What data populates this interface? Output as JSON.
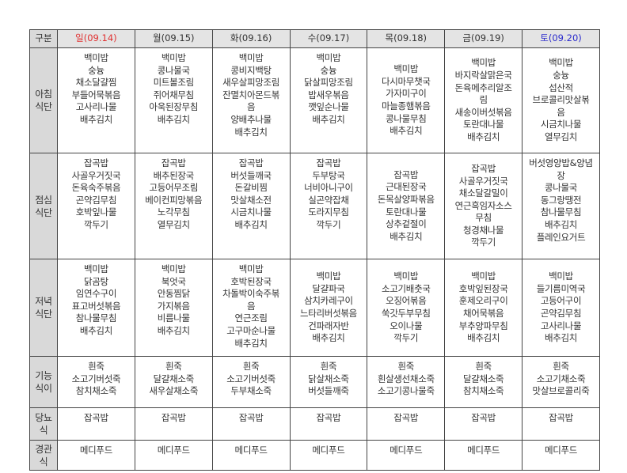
{
  "header": {
    "label": "구분",
    "days": [
      "일(09.14)",
      "월(09.15)",
      "화(09.16)",
      "수(09.17)",
      "목(09.18)",
      "금(09.19)",
      "토(09.20)"
    ],
    "day_colors": [
      "#e03030",
      "#333333",
      "#333333",
      "#333333",
      "#333333",
      "#333333",
      "#2b2bcc"
    ]
  },
  "rows": [
    {
      "label": [
        "아침",
        "식단"
      ],
      "cells": [
        [
          "백미밥",
          "숭늉",
          "채소달걀찜",
          "부들어묵볶음",
          "고사리나물",
          "배추김치"
        ],
        [
          "백미밥",
          "콩나물국",
          "미트볼조림",
          "쥐어채무침",
          "아욱된장무침",
          "배추김치"
        ],
        [
          "백미밥",
          "콩비지백탕",
          "새우살피망조림",
          "잔멸치아몬드볶",
          "음",
          "양배추나물",
          "배추김치"
        ],
        [
          "백미밥",
          "숭늉",
          "닭살피망조림",
          "밥새우볶음",
          "깻잎순나물",
          "배추김치"
        ],
        [
          "백미밥",
          "다시마무챗국",
          "가자미구이",
          "마늘종햄볶음",
          "콩나물무침",
          "배추김치"
        ],
        [
          "백미밥",
          "바지락살맑은국",
          "돈육메추리알조",
          "림",
          "새송이버섯볶음",
          "토란대나물",
          "배추김치"
        ],
        [
          "백미밥",
          "숭늉",
          "섭산적",
          "브로콜리맛살볶",
          "음",
          "시금치나물",
          "열무김치"
        ]
      ]
    },
    {
      "label": [
        "점심",
        "식단"
      ],
      "cells": [
        [
          "잡곡밥",
          "사골우거짓국",
          "돈육숙주볶음",
          "곤약김무침",
          "호박잎나물",
          "깍두기"
        ],
        [
          "잡곡밥",
          "배추된장국",
          "고등어무조림",
          "베이컨피망볶음",
          "노각무침",
          "열무김치"
        ],
        [
          "잡곡밥",
          "버섯들깨국",
          "돈갈비찜",
          "맛살채소전",
          "시금치나물",
          "배추김치"
        ],
        [
          "잡곡밥",
          "두부탕국",
          "너비아니구이",
          "실곤약잡채",
          "도라지무침",
          "깍두기"
        ],
        [
          "잡곡밥",
          "근대된장국",
          "돈목살양파볶음",
          "토란대나물",
          "상추겉절이",
          "배추김치"
        ],
        [
          "잡곡밥",
          "사골우거짓국",
          "채소달갈밀이",
          "연근흑임자소스",
          "무침",
          "청경채나물",
          "깍두기"
        ],
        [
          "버섯영양밥&양념",
          "장",
          "콩나물국",
          "동그랑땡전",
          "참나물무침",
          "배추김치",
          "플레인요거트"
        ]
      ]
    },
    {
      "label": [
        "저녁",
        "식단"
      ],
      "cells": [
        [
          "백미밥",
          "닭곰탕",
          "임연수구이",
          "표고버섯볶음",
          "참나물무침",
          "배추김치"
        ],
        [
          "백미밥",
          "북엇국",
          "안동찜닭",
          "가지볶음",
          "비름나물",
          "배추김치"
        ],
        [
          "백미밥",
          "호박된장국",
          "차돌박이숙주볶",
          "음",
          "연근조림",
          "고구마순나물",
          "배추김치"
        ],
        [
          "백미밥",
          "달걀파국",
          "삼치카레구이",
          "느타리버섯볶음",
          "건파래자반",
          "배추김치"
        ],
        [
          "백미밥",
          "소고기배춧국",
          "오징어볶음",
          "쑥갓두부무침",
          "오이나물",
          "깍두기"
        ],
        [
          "백미밥",
          "호박잎된장국",
          "훈제오리구이",
          "채어묵볶음",
          "부추양파무침",
          "배추김치"
        ],
        [
          "백미밥",
          "들기름미역국",
          "고등어구이",
          "곤약김무침",
          "고사리나물",
          "배추김치"
        ]
      ]
    },
    {
      "label": [
        "기능",
        "식이"
      ],
      "cells": [
        [
          "흰죽",
          "소고기버섯죽",
          "참치채소죽"
        ],
        [
          "흰죽",
          "달걀채소죽",
          "새우살채소죽"
        ],
        [
          "흰죽",
          "소고기버섯죽",
          "두부채소죽"
        ],
        [
          "흰죽",
          "닭살채소죽",
          "버섯들깨죽"
        ],
        [
          "흰죽",
          "흰살생선채소죽",
          "소고기콩나물죽"
        ],
        [
          "흰죽",
          "달걀채소죽",
          "참치채소죽"
        ],
        [
          "흰죽",
          "소고기채소죽",
          "맛살브로콜리죽"
        ]
      ]
    },
    {
      "label": [
        "당뇨",
        "식"
      ],
      "cells": [
        [
          "잡곡밥"
        ],
        [
          "잡곡밥"
        ],
        [
          "잡곡밥"
        ],
        [
          "잡곡밥"
        ],
        [
          "잡곡밥"
        ],
        [
          "잡곡밥"
        ],
        [
          "잡곡밥"
        ]
      ]
    },
    {
      "label": [
        "경관",
        "식"
      ],
      "cells": [
        [
          "메디푸드"
        ],
        [
          "메디푸드"
        ],
        [
          "메디푸드"
        ],
        [
          "메디푸드"
        ],
        [
          "메디푸드"
        ],
        [
          "메디푸드"
        ],
        [
          "메디푸드"
        ]
      ]
    }
  ]
}
